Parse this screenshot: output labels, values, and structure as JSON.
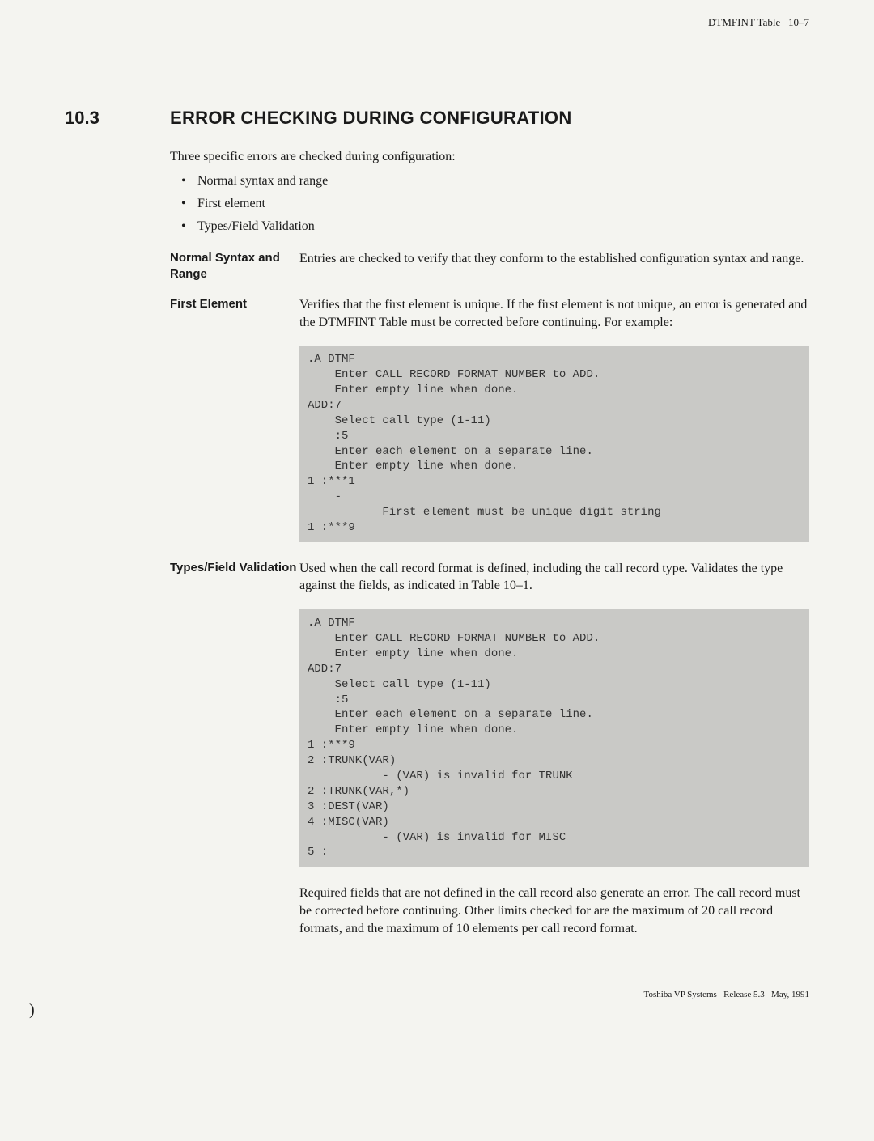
{
  "header": {
    "table_ref": "DTMFINT Table",
    "page_ref": "10–7"
  },
  "section": {
    "number": "10.3",
    "title": "ERROR CHECKING DURING CONFIGURATION"
  },
  "intro": "Three specific errors are checked during configuration:",
  "bullets": [
    "Normal syntax and range",
    "First element",
    "Types/Field Validation"
  ],
  "defs": {
    "normal": {
      "label": "Normal Syntax and Range",
      "text": "Entries are checked to verify that they conform to the established configuration syntax and range."
    },
    "first": {
      "label": "First Element",
      "text": "Verifies that the first element is unique. If the first element is not unique, an error is generated and the DTMFINT Table must be corrected before continuing. For example:"
    },
    "types": {
      "label": "Types/Field Validation",
      "text": "Used when the call record format is defined, including the call record type. Validates the type against the fields, as indicated in Table 10–1."
    }
  },
  "term1": ".A DTMF\n    Enter CALL RECORD FORMAT NUMBER to ADD.\n    Enter empty line when done.\nADD:7\n    Select call type (1-11)\n    :5\n    Enter each element on a separate line.\n    Enter empty line when done.\n1 :***1\n    -\n           First element must be unique digit string\n1 :***9",
  "term2": ".A DTMF\n    Enter CALL RECORD FORMAT NUMBER to ADD.\n    Enter empty line when done.\nADD:7\n    Select call type (1-11)\n    :5\n    Enter each element on a separate line.\n    Enter empty line when done.\n1 :***9\n2 :TRUNK(VAR)\n           - (VAR) is invalid for TRUNK\n2 :TRUNK(VAR,*)\n3 :DEST(VAR)\n4 :MISC(VAR)\n           - (VAR) is invalid for MISC\n5 :",
  "bottom": "Required fields that are not defined in the call record also generate an error. The call record must be corrected before continuing. Other limits checked for are the maximum of 20 call record formats, and the maximum of 10 elements per call record format.",
  "footer": {
    "brand": "Toshiba VP Systems",
    "release": "Release 5.3",
    "date": "May, 1991"
  }
}
